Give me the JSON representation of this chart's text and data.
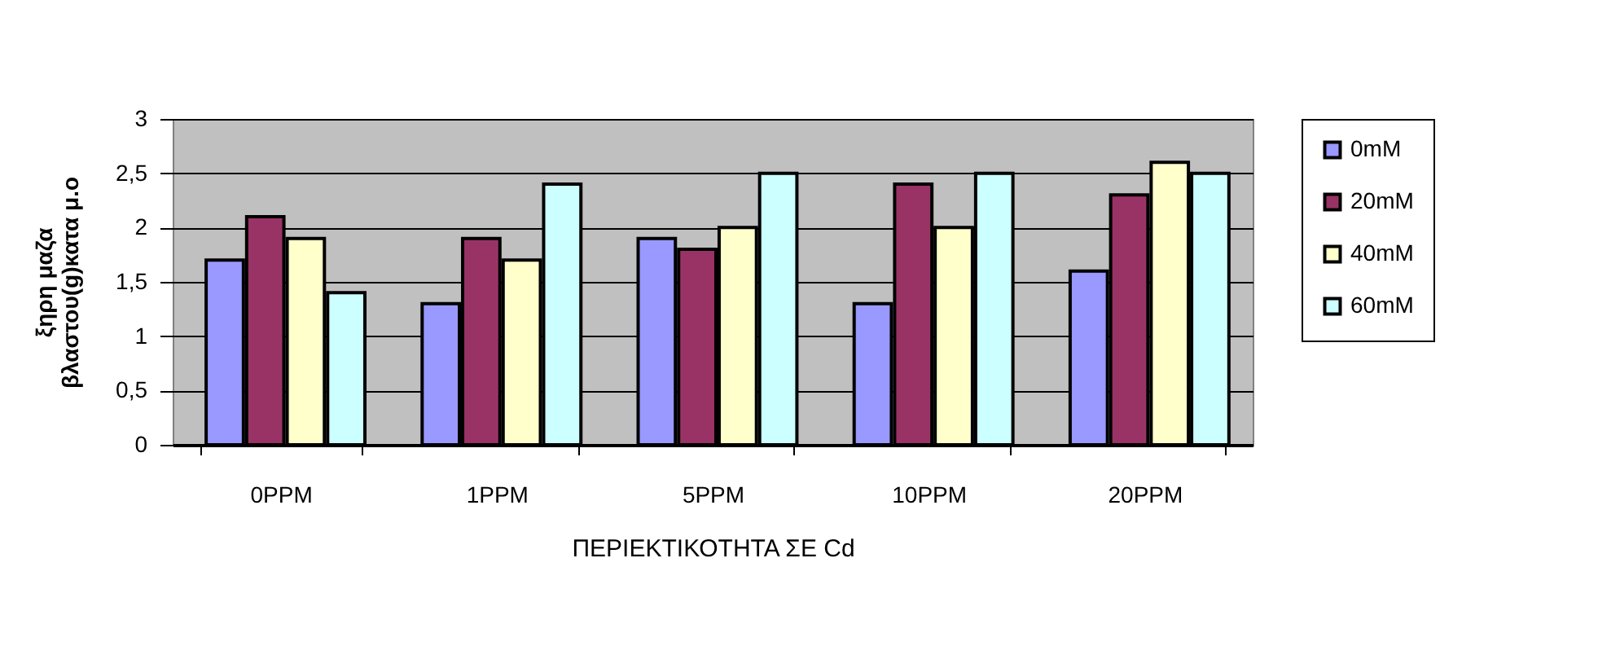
{
  "chart_data": {
    "type": "bar",
    "xlabel": "ΠΕΡΙΕΚΤΙΚΟΤΗΤΑ ΣΕ Cd",
    "ylabel": "ξηρη μαζα\nβλαστου(g)κατα  μ.ο",
    "categories": [
      "0PPM",
      "1PPM",
      "5PPM",
      "10PPM",
      "20PPM"
    ],
    "series": [
      {
        "name": "0mM",
        "color": "#9999ff",
        "values": [
          1.7,
          1.3,
          1.9,
          1.3,
          1.6
        ]
      },
      {
        "name": "20mM",
        "color": "#993366",
        "values": [
          2.1,
          1.9,
          1.8,
          2.4,
          2.3
        ]
      },
      {
        "name": "40mM",
        "color": "#ffffcc",
        "values": [
          1.9,
          1.7,
          2.0,
          2.0,
          2.6
        ]
      },
      {
        "name": "60mM",
        "color": "#ccffff",
        "values": [
          1.4,
          2.4,
          2.5,
          2.5,
          2.5
        ]
      }
    ],
    "ylim": [
      0,
      3
    ],
    "yticks": [
      0,
      {
        "value": 0.5,
        "label": "0,5"
      },
      1,
      {
        "value": 1.5,
        "label": "1,5"
      },
      2,
      {
        "value": 2.5,
        "label": "2,5"
      },
      3
    ],
    "grid": "y",
    "legend": "right"
  }
}
